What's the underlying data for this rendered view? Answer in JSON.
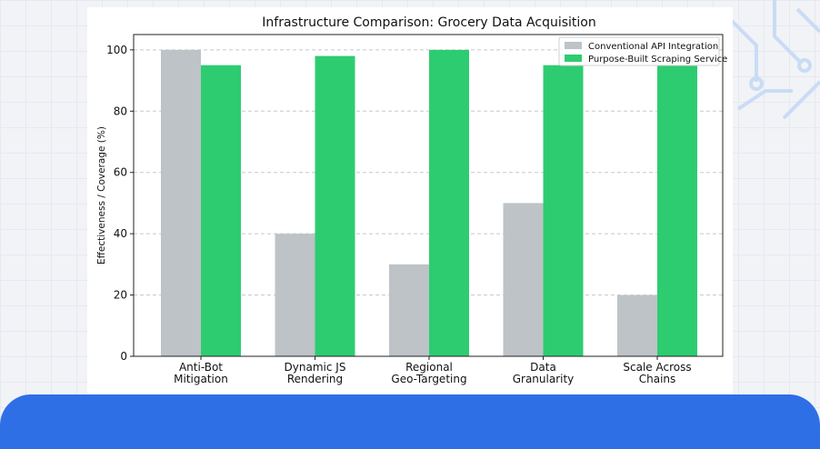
{
  "chart_data": {
    "type": "bar",
    "title": "Infrastructure Comparison: Grocery Data Acquisition",
    "xlabel": "",
    "ylabel": "Effectiveness / Coverage (%)",
    "ylim": [
      0,
      105
    ],
    "yticks": [
      0,
      20,
      40,
      60,
      80,
      100
    ],
    "grid": "horizontal dashed",
    "legend_position": "top-right",
    "categories": [
      [
        "Anti-Bot",
        "Mitigation"
      ],
      [
        "Dynamic JS",
        "Rendering"
      ],
      [
        "Regional",
        "Geo-Targeting"
      ],
      [
        "Data",
        "Granularity"
      ],
      [
        "Scale Across",
        "Chains"
      ]
    ],
    "series": [
      {
        "name": "Conventional API Integration",
        "color": "#bdc3c7",
        "values": [
          100,
          40,
          30,
          50,
          20
        ]
      },
      {
        "name": "Purpose-Built Scraping Service",
        "color": "#2ecc71",
        "values": [
          95,
          98,
          100,
          95,
          95
        ]
      }
    ]
  }
}
